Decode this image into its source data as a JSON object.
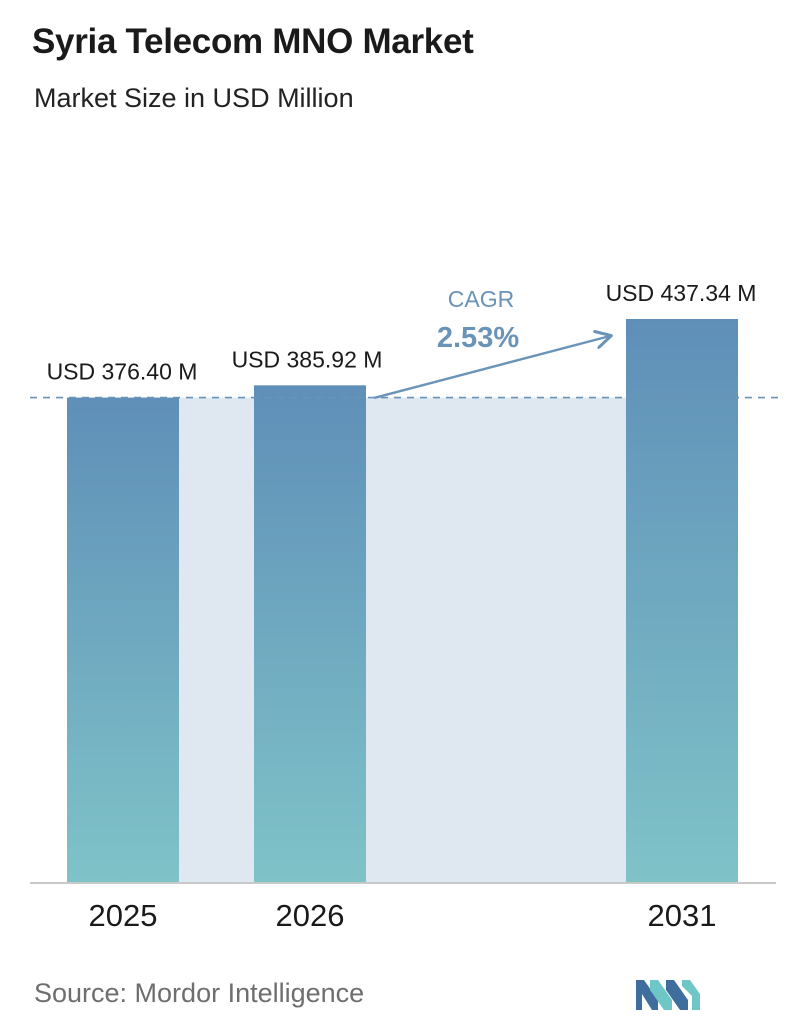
{
  "header": {
    "title": "Syria Telecom MNO Market",
    "subtitle": "Market Size in USD Million"
  },
  "chart_data": {
    "type": "bar",
    "categories": [
      "2025",
      "2026",
      "2031"
    ],
    "values": [
      376.4,
      385.92,
      437.34
    ],
    "value_labels": [
      "USD 376.40 M",
      "USD 385.92 M",
      "USD 437.34 M"
    ],
    "unit": "USD Million",
    "baseline_reference": 376.4,
    "annotation": {
      "label": "CAGR",
      "value": "2.53%"
    },
    "title": "Syria Telecom MNO Market",
    "subtitle": "Market Size in USD Million",
    "xlabel": "",
    "ylabel": "",
    "grid": false,
    "legend": "none"
  },
  "footer": {
    "source": "Source:  Mordor Intelligence"
  },
  "colors": {
    "bar_top": "#5f8fb8",
    "bar_bottom": "#7fc3c8",
    "band_fill": "#dfe8f1",
    "dashed_line": "#6a93b8",
    "arrow": "#6a93b8",
    "axis_line": "#c9c9c9",
    "logo_dark": "#3f6e9e",
    "logo_light": "#6ec6c6"
  },
  "logo": {
    "icon": "mordor-intelligence-logo-icon"
  }
}
